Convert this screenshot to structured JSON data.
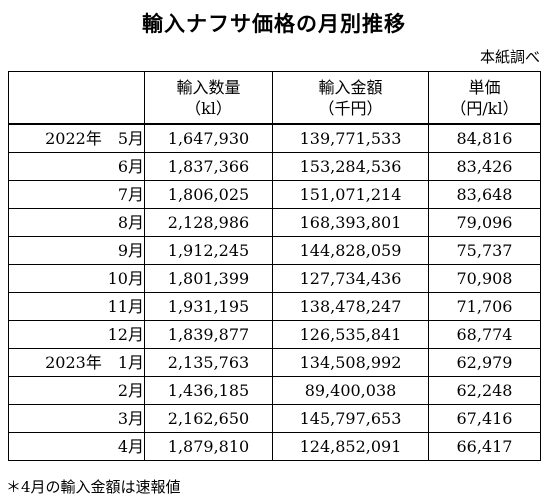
{
  "title": "輸入ナフサ価格の月別推移",
  "source": "本紙調べ",
  "headers": {
    "period": "",
    "qty": {
      "label": "輸入数量",
      "unit": "（kl）"
    },
    "amount": {
      "label": "輸入金額",
      "unit": "（千円）"
    },
    "unit_price": {
      "label": "単価",
      "unit": "（円/kl）"
    }
  },
  "rows": [
    {
      "period": "2022年　5月",
      "qty": "1,647,930",
      "amount": "139,771,533",
      "unit_price": "84,816"
    },
    {
      "period": "6月",
      "qty": "1,837,366",
      "amount": "153,284,536",
      "unit_price": "83,426"
    },
    {
      "period": "7月",
      "qty": "1,806,025",
      "amount": "151,071,214",
      "unit_price": "83,648"
    },
    {
      "period": "8月",
      "qty": "2,128,986",
      "amount": "168,393,801",
      "unit_price": "79,096"
    },
    {
      "period": "9月",
      "qty": "1,912,245",
      "amount": "144,828,059",
      "unit_price": "75,737"
    },
    {
      "period": "10月",
      "qty": "1,801,399",
      "amount": "127,734,436",
      "unit_price": "70,908"
    },
    {
      "period": "11月",
      "qty": "1,931,195",
      "amount": "138,478,247",
      "unit_price": "71,706"
    },
    {
      "period": "12月",
      "qty": "1,839,877",
      "amount": "126,535,841",
      "unit_price": "68,774"
    },
    {
      "period": "2023年　1月",
      "qty": "2,135,763",
      "amount": "134,508,992",
      "unit_price": "62,979"
    },
    {
      "period": "2月",
      "qty": "1,436,185",
      "amount": "89,400,038",
      "unit_price": "62,248"
    },
    {
      "period": "3月",
      "qty": "2,162,650",
      "amount": "145,797,653",
      "unit_price": "67,416"
    },
    {
      "period": "4月",
      "qty": "1,879,810",
      "amount": "124,852,091",
      "unit_price": "66,417"
    }
  ],
  "note": "＊4月の輸入金額は速報値"
}
